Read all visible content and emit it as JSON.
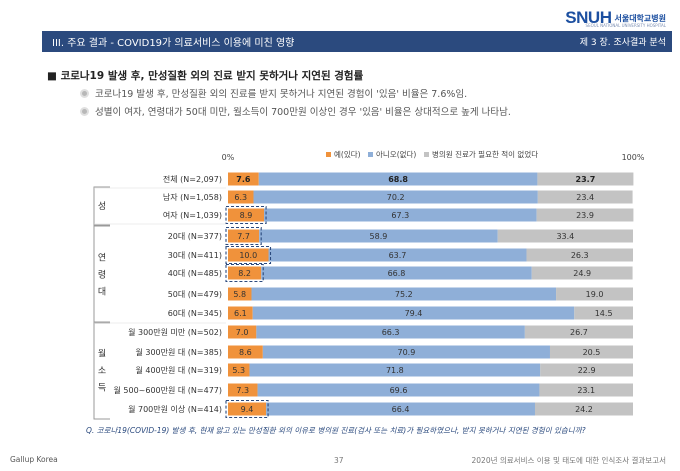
{
  "header": {
    "logo_mark": "SNUH",
    "logo_name": "서울대학교병원",
    "logo_sub": "SEOUL NATIONAL UNIVERSITY HOSPITAL",
    "title": "III. 주요 결과 -  COVID19가  의료서비스 이용에 미친 영향",
    "chapter": "제 3 장. 조사결과  분석"
  },
  "section_title": "■ 코로나19 발생 후, 만성질환 외의 진료 받지 못하거나 지연된 경험률",
  "bullets": [
    "코로나19 발생 후, 만성질환 외의 진료를 받지 못하거나 지연된 경험이 '있음' 비율은 7.6%임.",
    "성별이 여자, 연령대가 50대 미만, 월소득이 700만원 이상인 경우 '있음' 비율은 상대적으로 높게 나타남."
  ],
  "chart_data": {
    "type": "bar",
    "orientation": "horizontal",
    "stacked": true,
    "percent_stacked": true,
    "axis_min_label": "0%",
    "axis_max_label": "100%",
    "xlim": [
      0,
      100
    ],
    "legend_position": "top",
    "series": [
      {
        "name": "예(있다)",
        "color": "#f0923b",
        "values": [
          7.6,
          6.3,
          8.9,
          7.7,
          10.0,
          8.2,
          5.8,
          6.1,
          7.0,
          8.6,
          5.3,
          7.3,
          9.4
        ]
      },
      {
        "name": "아니오(없다)",
        "color": "#8fafd8",
        "values": [
          68.8,
          70.2,
          67.3,
          58.9,
          63.7,
          66.8,
          75.2,
          79.4,
          66.3,
          70.9,
          71.8,
          69.6,
          66.4
        ]
      },
      {
        "name": "병의원 진료가 필요한 적이 없었다",
        "color": "#c3c3c3",
        "values": [
          23.7,
          23.4,
          23.9,
          33.4,
          26.3,
          24.9,
          19.0,
          14.5,
          26.7,
          20.5,
          22.9,
          23.1,
          24.2
        ]
      }
    ],
    "categories": [
      "전체 (N=2,097)",
      "남자 (N=1,058)",
      "여자 (N=1,039)",
      "20대 (N=377)",
      "30대 (N=411)",
      "40대 (N=485)",
      "50대 (N=479)",
      "60대 (N=345)",
      "월 300만원 미만 (N=502)",
      "월 300만원 대 (N=385)",
      "월 400만원 대 (N=319)",
      "월 500~600만원 대 (N=477)",
      "월 700만원 이상 (N=414)"
    ],
    "groups": [
      {
        "label": "성",
        "rows": [
          1,
          2
        ]
      },
      {
        "label": "연령대",
        "rows": [
          3,
          4,
          5,
          6,
          7
        ]
      },
      {
        "label": "월소득",
        "rows": [
          8,
          9,
          10,
          11,
          12
        ]
      }
    ],
    "highlighted_rows": [
      2,
      3,
      4,
      5,
      12
    ],
    "bold_rows": [
      0
    ],
    "question": "Q. 코로나19(COVID-19)  발생 후,  현재 앓고 있는 만성질환 외의 이유로 병의원 진료(검사 또는 치료)가 필요하였으나,  받지 못하거나  지연된 경험이 있습니까?"
  },
  "footer": {
    "left": "Gallup  Korea",
    "page": "37",
    "right": "2020년 의료서비스  이용 및 태도에 대한  인식조사 결과보고서"
  }
}
